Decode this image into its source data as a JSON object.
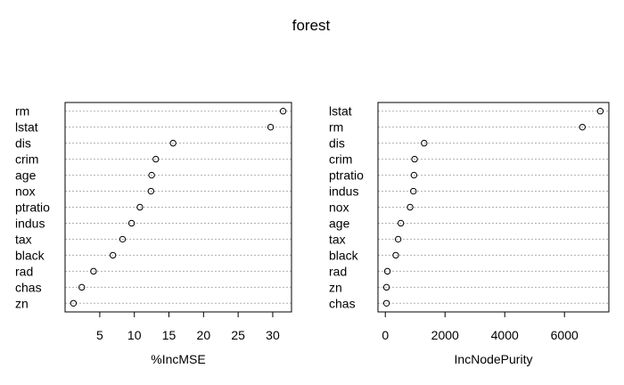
{
  "title": "forest",
  "chart_data": [
    {
      "type": "scatter",
      "xlabel": "%IncMSE",
      "categories": [
        "rm",
        "lstat",
        "dis",
        "crim",
        "age",
        "nox",
        "ptratio",
        "indus",
        "tax",
        "black",
        "rad",
        "chas",
        "zn"
      ],
      "values": [
        31.5,
        29.7,
        15.6,
        13.1,
        12.5,
        12.4,
        10.8,
        9.6,
        8.3,
        6.9,
        4.1,
        2.4,
        1.2
      ],
      "xlim": [
        1.2,
        31.5
      ],
      "xticks": [
        5,
        10,
        15,
        20,
        25,
        30
      ],
      "grid": "dotted horizontal lines per category"
    },
    {
      "type": "scatter",
      "xlabel": "IncNodePurity",
      "categories": [
        "lstat",
        "rm",
        "dis",
        "crim",
        "ptratio",
        "indus",
        "nox",
        "age",
        "tax",
        "black",
        "rad",
        "zn",
        "chas"
      ],
      "values": [
        7200,
        6600,
        1300,
        980,
        960,
        940,
        830,
        520,
        430,
        350,
        70,
        40,
        40
      ],
      "xlim": [
        40,
        7200
      ],
      "xticks": [
        0,
        2000,
        4000,
        6000
      ],
      "grid": "dotted horizontal lines per category"
    }
  ]
}
